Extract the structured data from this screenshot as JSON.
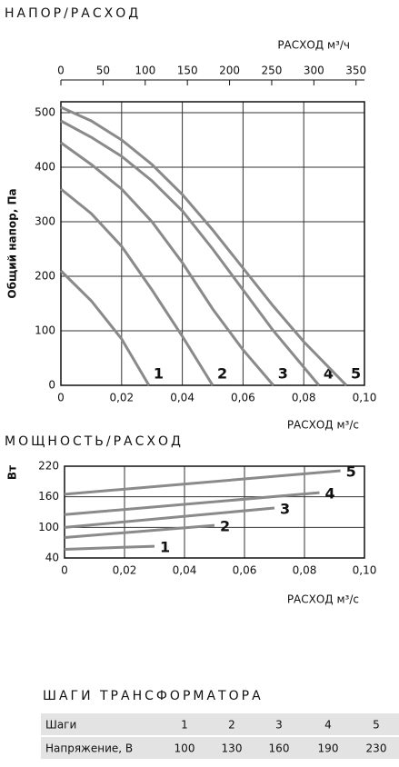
{
  "chart_data": [
    {
      "type": "line",
      "title": "НАПОР/РАСХОД",
      "x2label": "РАСХОД м³/ч",
      "xlabel": "РАСХОД м³/с",
      "ylabel": "Общий напор, Па",
      "xlim": [
        0,
        0.1
      ],
      "xticks": [
        0,
        {
          "value": 0.02,
          "label": "0,02"
        },
        {
          "value": 0.04,
          "label": "0,04"
        },
        {
          "value": 0.06,
          "label": "0,06"
        },
        {
          "value": 0.08,
          "label": "0,08"
        },
        {
          "value": 0.1,
          "label": "0,10"
        }
      ],
      "x2lim": [
        0,
        360
      ],
      "x2ticks": [
        0,
        50,
        100,
        150,
        200,
        250,
        300,
        350
      ],
      "ylim": [
        0,
        520
      ],
      "yticks": [
        0,
        100,
        200,
        300,
        400,
        500
      ],
      "grid": true,
      "series": [
        {
          "name": "1",
          "color": "#8a8a8a",
          "x": [
            0,
            0.01,
            0.02,
            0.029
          ],
          "values": [
            210,
            155,
            85,
            0
          ]
        },
        {
          "name": "2",
          "color": "#8a8a8a",
          "x": [
            0,
            0.01,
            0.02,
            0.03,
            0.04,
            0.05
          ],
          "values": [
            360,
            315,
            255,
            175,
            90,
            0
          ]
        },
        {
          "name": "3",
          "color": "#8a8a8a",
          "x": [
            0,
            0.01,
            0.02,
            0.03,
            0.04,
            0.05,
            0.06,
            0.07
          ],
          "values": [
            445,
            405,
            360,
            300,
            225,
            140,
            65,
            0
          ]
        },
        {
          "name": "4",
          "color": "#8a8a8a",
          "x": [
            0,
            0.01,
            0.02,
            0.03,
            0.04,
            0.05,
            0.06,
            0.07,
            0.085
          ],
          "values": [
            485,
            455,
            420,
            375,
            320,
            250,
            175,
            100,
            0
          ]
        },
        {
          "name": "5",
          "color": "#8a8a8a",
          "x": [
            0,
            0.01,
            0.02,
            0.03,
            0.04,
            0.05,
            0.06,
            0.07,
            0.08,
            0.094
          ],
          "values": [
            510,
            485,
            450,
            405,
            350,
            285,
            215,
            145,
            80,
            0
          ]
        }
      ]
    },
    {
      "type": "line",
      "title": "МОЩНОСТЬ/РАСХОД",
      "xlabel": "РАСХОД м³/с",
      "ylabel": "Вт",
      "xlim": [
        0,
        0.1
      ],
      "xticks": [
        0,
        {
          "value": 0.02,
          "label": "0,02"
        },
        {
          "value": 0.04,
          "label": "0,04"
        },
        {
          "value": 0.06,
          "label": "0,06"
        },
        {
          "value": 0.08,
          "label": "0,08"
        },
        {
          "value": 0.1,
          "label": "0,10"
        }
      ],
      "ylim": [
        40,
        220
      ],
      "yticks": [
        40,
        100,
        160,
        220
      ],
      "grid": true,
      "series": [
        {
          "name": "1",
          "color": "#8a8a8a",
          "x": [
            0,
            0.03
          ],
          "values": [
            57,
            63
          ]
        },
        {
          "name": "2",
          "color": "#8a8a8a",
          "x": [
            0,
            0.05
          ],
          "values": [
            80,
            104
          ]
        },
        {
          "name": "3",
          "color": "#8a8a8a",
          "x": [
            0,
            0.07
          ],
          "values": [
            100,
            138
          ]
        },
        {
          "name": "4",
          "color": "#8a8a8a",
          "x": [
            0,
            0.085
          ],
          "values": [
            125,
            168
          ]
        },
        {
          "name": "5",
          "color": "#8a8a8a",
          "x": [
            0,
            0.092
          ],
          "values": [
            165,
            211
          ]
        }
      ]
    }
  ],
  "table": {
    "title": "ШАГИ ТРАНСФОРМАТОРА",
    "rows": [
      [
        "Шаги",
        1,
        2,
        3,
        4,
        5
      ],
      [
        "Напряжение, В",
        100,
        130,
        160,
        190,
        230
      ]
    ]
  }
}
